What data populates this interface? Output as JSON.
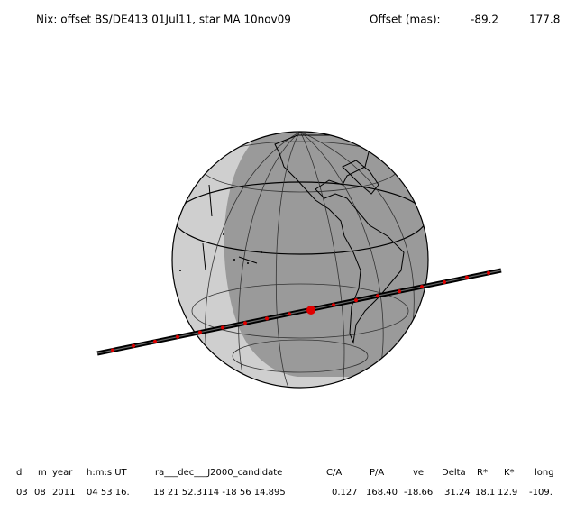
{
  "title": "Nix: offset BS/DE413 01Jul11, star MA 10nov09",
  "offset_label": "Offset (mas):",
  "offset_values": [
    "-89.2",
    "177.8"
  ],
  "table": {
    "headers": [
      "d",
      "m",
      "year",
      "h:m:s UT",
      "ra___dec___J2000_candidate",
      "C/A",
      "P/A",
      "vel",
      "Delta",
      "R*",
      "K*",
      "long"
    ],
    "rows": [
      [
        "03",
        "08",
        "2011",
        "04 53 16.",
        "18 21 52.3114 -18 56 14.895",
        "0.127",
        "168.40",
        "-18.66",
        "31.24",
        "18.1",
        "12.9",
        "-109."
      ]
    ]
  }
}
